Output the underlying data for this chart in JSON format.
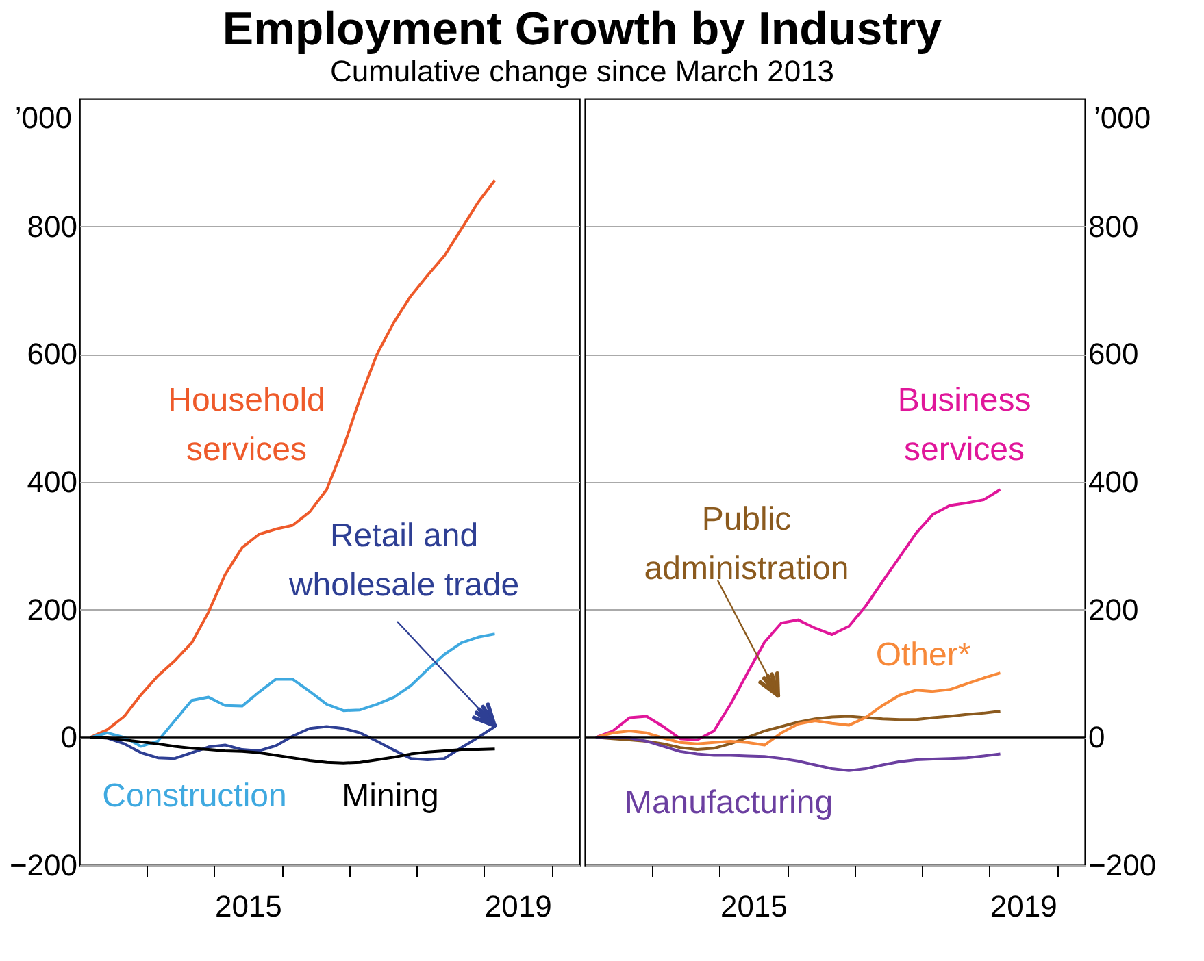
{
  "chart_data": [
    {
      "type": "line",
      "title": "Employment Growth by Industry",
      "subtitle": "Cumulative change since March 2013",
      "ylabel": "’000",
      "x": [
        "2013-03",
        "2013-06",
        "2013-09",
        "2013-12",
        "2014-03",
        "2014-06",
        "2014-09",
        "2014-12",
        "2015-03",
        "2015-06",
        "2015-09",
        "2015-12",
        "2016-03",
        "2016-06",
        "2016-09",
        "2016-12",
        "2017-03",
        "2017-06",
        "2017-09",
        "2017-12",
        "2018-03",
        "2018-06",
        "2018-09",
        "2018-12",
        "2019-03"
      ],
      "xlim": [
        "2013-01-01",
        "2020-06-01"
      ],
      "xticks": [
        {
          "value": "2014-01-01",
          "label": null
        },
        {
          "value": "2015-01-01",
          "label": null
        },
        {
          "value": "2015-07-02",
          "label": "2015"
        },
        {
          "value": "2016-01-01",
          "label": null
        },
        {
          "value": "2017-01-01",
          "label": null
        },
        {
          "value": "2018-01-01",
          "label": null
        },
        {
          "value": "2019-01-01",
          "label": null
        },
        {
          "value": "2019-07-02",
          "label": "2019"
        },
        {
          "value": "2020-01-01",
          "label": null
        }
      ],
      "ylim": [
        -200,
        1000
      ],
      "yticks": [
        -200,
        0,
        200,
        400,
        600,
        800
      ],
      "grid": "y",
      "ref_lines": [
        {
          "axis": "y",
          "value": 0,
          "color": "#000000"
        }
      ],
      "series": [
        {
          "name": "Household services",
          "color": "#ee5a2a",
          "values": [
            0,
            12,
            33,
            67,
            96,
            120,
            148,
            196,
            255,
            297,
            318,
            326,
            332,
            353,
            388,
            454,
            531,
            600,
            650,
            691,
            723,
            754,
            796,
            838,
            872
          ]
        },
        {
          "name": "Retail and wholesale trade",
          "color": "#2e3f94",
          "values": [
            0,
            -1,
            -10,
            -24,
            -32,
            -33,
            -24,
            -15,
            -12,
            -19,
            -21,
            -13,
            2,
            14,
            17,
            14,
            7,
            -6,
            -20,
            -33,
            -35,
            -33,
            -16,
            0,
            17
          ]
        },
        {
          "name": "Construction",
          "color": "#3fa9e0",
          "values": [
            0,
            7,
            0,
            -14,
            -6,
            26,
            58,
            63,
            50,
            49,
            71,
            91,
            91,
            72,
            52,
            42,
            43,
            52,
            63,
            81,
            106,
            130,
            148,
            157,
            162
          ]
        },
        {
          "name": "Mining",
          "color": "#000000",
          "values": [
            0,
            -1,
            -4,
            -7,
            -10,
            -14,
            -17,
            -19,
            -21,
            -22,
            -24,
            -28,
            -32,
            -36,
            -39,
            -40,
            -39,
            -35,
            -31,
            -26,
            -23,
            -21,
            -19,
            -19,
            -18
          ]
        }
      ]
    },
    {
      "type": "line",
      "y2label": "’000",
      "x": [
        "2013-03",
        "2013-06",
        "2013-09",
        "2013-12",
        "2014-03",
        "2014-06",
        "2014-09",
        "2014-12",
        "2015-03",
        "2015-06",
        "2015-09",
        "2015-12",
        "2016-03",
        "2016-06",
        "2016-09",
        "2016-12",
        "2017-03",
        "2017-06",
        "2017-09",
        "2017-12",
        "2018-03",
        "2018-06",
        "2018-09",
        "2018-12",
        "2019-03"
      ],
      "xlim": [
        "2013-01-01",
        "2020-06-01"
      ],
      "xticks": [
        {
          "value": "2014-01-01",
          "label": null
        },
        {
          "value": "2015-01-01",
          "label": null
        },
        {
          "value": "2015-07-02",
          "label": "2015"
        },
        {
          "value": "2016-01-01",
          "label": null
        },
        {
          "value": "2017-01-01",
          "label": null
        },
        {
          "value": "2018-01-01",
          "label": null
        },
        {
          "value": "2019-01-01",
          "label": null
        },
        {
          "value": "2019-07-02",
          "label": "2019"
        },
        {
          "value": "2020-01-01",
          "label": null
        }
      ],
      "y2lim": [
        -200,
        1000
      ],
      "y2ticks": [
        -200,
        0,
        200,
        400,
        600,
        800
      ],
      "grid": "y",
      "ref_lines": [
        {
          "axis": "y2",
          "value": 0,
          "color": "#000000"
        }
      ],
      "series": [
        {
          "name": "Business services",
          "axis": "y2",
          "color": "#e0169a",
          "values": [
            0,
            10,
            31,
            33,
            17,
            -2,
            -4,
            10,
            52,
            101,
            149,
            179,
            184,
            171,
            161,
            174,
            205,
            244,
            282,
            320,
            349,
            363,
            367,
            372,
            388
          ]
        },
        {
          "name": "Public administration",
          "axis": "y2",
          "color": "#8b5a1e",
          "values": [
            0,
            -2,
            -4,
            -6,
            -10,
            -16,
            -19,
            -17,
            -10,
            0,
            10,
            17,
            24,
            29,
            32,
            33,
            31,
            29,
            28,
            28,
            31,
            33,
            36,
            38,
            41
          ]
        },
        {
          "name": "Other*",
          "axis": "y2",
          "color": "#f7893a",
          "values": [
            0,
            7,
            10,
            7,
            -1,
            -8,
            -10,
            -8,
            -6,
            -8,
            -12,
            7,
            21,
            26,
            22,
            19,
            31,
            50,
            66,
            74,
            72,
            75,
            84,
            93,
            101
          ]
        },
        {
          "name": "Manufacturing",
          "axis": "y2",
          "color": "#6b3fa0",
          "values": [
            0,
            0,
            -1,
            -6,
            -14,
            -22,
            -26,
            -28,
            -28,
            -29,
            -30,
            -33,
            -37,
            -43,
            -49,
            -52,
            -49,
            -43,
            -38,
            -35,
            -34,
            -33,
            -32,
            -29,
            -26
          ]
        }
      ]
    }
  ]
}
